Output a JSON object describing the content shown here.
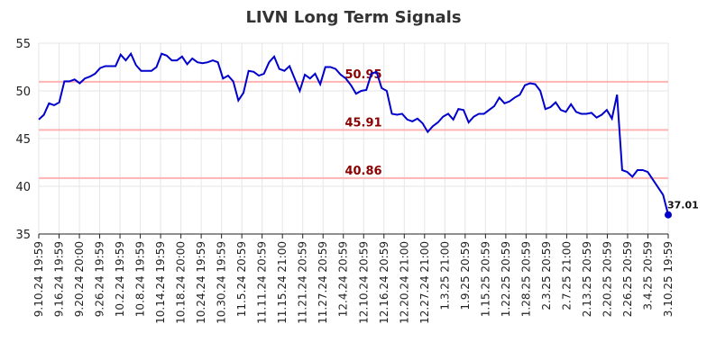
{
  "chart_data": {
    "type": "line",
    "title": "LIVN Long Term Signals",
    "xlabel": "",
    "ylabel": "",
    "ylim": [
      35,
      55
    ],
    "yticks": [
      "35",
      "40",
      "45",
      "50",
      "55"
    ],
    "grid": true,
    "x_tick_labels": [
      "9.10.24 19:59",
      "9.16.24 19:59",
      "9.20.24 20:00",
      "9.26.24 19:59",
      "10.2.24 19:59",
      "10.8.24 19:59",
      "10.14.24 19:59",
      "10.18.24 20:00",
      "10.24.24 19:59",
      "10.30.24 19:59",
      "11.5.24 20:59",
      "11.11.24 20:59",
      "11.15.24 21:00",
      "11.21.24 20:59",
      "11.27.24 20:59",
      "12.4.24 20:59",
      "12.10.24 20:59",
      "12.16.24 20:59",
      "12.20.24 21:00",
      "12.27.24 21:00",
      "1.3.25 21:00",
      "1.9.25 20:59",
      "1.15.25 20:59",
      "1.22.25 20:59",
      "1.28.25 20:59",
      "2.3.25 20:59",
      "2.7.25 21:00",
      "2.13.25 20:59",
      "2.20.25 20:59",
      "2.26.25 20:59",
      "3.4.25 20:59",
      "3.10.25 19:59"
    ],
    "series": [
      {
        "color": "#0000cc",
        "values": [
          47.0,
          47.5,
          48.7,
          48.5,
          48.8,
          51.0,
          51.0,
          51.2,
          50.8,
          51.3,
          51.5,
          51.8,
          52.4,
          52.6,
          52.6,
          52.6,
          53.8,
          53.2,
          53.9,
          52.7,
          52.1,
          52.1,
          52.1,
          52.5,
          53.9,
          53.7,
          53.2,
          53.2,
          53.6,
          52.8,
          53.4,
          53.0,
          52.9,
          53.0,
          53.2,
          53.0,
          51.3,
          51.6,
          51.0,
          49.0,
          49.8,
          52.1,
          52.0,
          51.6,
          51.8,
          53.0,
          53.6,
          52.3,
          52.1,
          52.6,
          51.3,
          50.0,
          51.7,
          51.3,
          51.8,
          50.7,
          52.5,
          52.5,
          52.3,
          51.7,
          51.3,
          50.6,
          49.7,
          50.0,
          50.1,
          51.8,
          52.0,
          50.3,
          50.0,
          47.6,
          47.5,
          47.6,
          47.0,
          46.8,
          47.1,
          46.6,
          45.7,
          46.3,
          46.7,
          47.3,
          47.6,
          47.0,
          48.1,
          48.0,
          46.7,
          47.3,
          47.6,
          47.6,
          48.0,
          48.4,
          49.3,
          48.7,
          48.9,
          49.3,
          49.6,
          50.6,
          50.8,
          50.7,
          50.0,
          48.1,
          48.3,
          48.8,
          48.0,
          47.8,
          48.6,
          47.8,
          47.6,
          47.6,
          47.7,
          47.2,
          47.5,
          48.0,
          47.1,
          49.6,
          41.7,
          41.5,
          41.0,
          41.7,
          41.7,
          41.5,
          40.7,
          39.9,
          39.1,
          37.01
        ]
      }
    ],
    "levels": [
      {
        "value": 50.95,
        "label": "50.95",
        "color": "#ffb3b3"
      },
      {
        "value": 45.91,
        "label": "45.91",
        "color": "#ffb3b3"
      },
      {
        "value": 40.86,
        "label": "40.86",
        "color": "#ffb3b3"
      }
    ],
    "last_point": {
      "value": 37.01,
      "label": "37.01",
      "color": "#0000cc"
    },
    "colors": {
      "grid": "#e6e6e6",
      "axis": "#222222"
    }
  }
}
